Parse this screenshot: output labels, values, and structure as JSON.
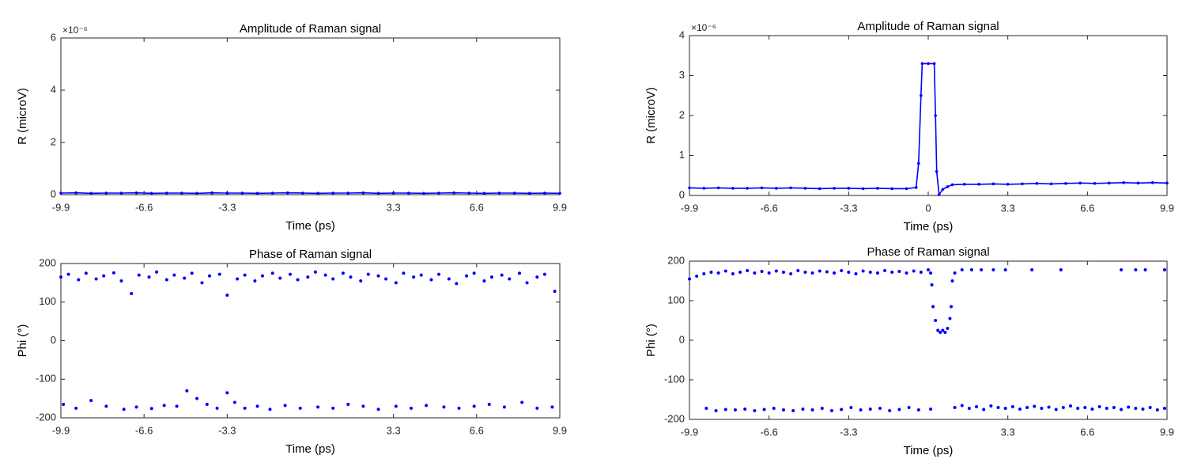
{
  "chart_data": [
    {
      "type": "line",
      "title": "Amplitude of Raman signal",
      "xlabel": "Time (ps)",
      "ylabel": "R (microV)",
      "y_multiplier_label": "×10⁻⁶",
      "color": "#0000ff",
      "xlim": [
        -9.9,
        9.9
      ],
      "xticks": [
        -9.9,
        -6.6,
        -3.3,
        3.3,
        6.6,
        9.9
      ],
      "ylim": [
        0,
        6
      ],
      "yticks": [
        0,
        2,
        4,
        6
      ],
      "x": [
        -9.9,
        -9.3,
        -8.7,
        -8.1,
        -7.5,
        -6.9,
        -6.3,
        -5.7,
        -5.1,
        -4.5,
        -3.9,
        -3.3,
        -2.7,
        -2.1,
        -1.5,
        -0.9,
        -0.3,
        0.3,
        0.9,
        1.5,
        2.1,
        2.7,
        3.3,
        3.9,
        4.5,
        5.1,
        5.7,
        6.3,
        6.9,
        7.5,
        8.1,
        8.7,
        9.3,
        9.9
      ],
      "values": [
        0.06,
        0.07,
        0.05,
        0.06,
        0.06,
        0.07,
        0.05,
        0.06,
        0.06,
        0.05,
        0.07,
        0.06,
        0.06,
        0.05,
        0.06,
        0.07,
        0.06,
        0.05,
        0.06,
        0.06,
        0.07,
        0.05,
        0.06,
        0.06,
        0.05,
        0.06,
        0.07,
        0.06,
        0.05,
        0.06,
        0.06,
        0.05,
        0.06,
        0.05
      ]
    },
    {
      "type": "line",
      "title": "Amplitude of Raman signal",
      "xlabel": "Time (ps)",
      "ylabel": "R (microV)",
      "y_multiplier_label": "×10⁻⁶",
      "color": "#0000ff",
      "xlim": [
        -9.9,
        9.9
      ],
      "xticks": [
        -9.9,
        -6.6,
        -3.3,
        0,
        3.3,
        6.6,
        9.9
      ],
      "ylim": [
        0,
        4
      ],
      "yticks": [
        0,
        1,
        2,
        3,
        4
      ],
      "x": [
        -9.9,
        -9.3,
        -8.7,
        -8.1,
        -7.5,
        -6.9,
        -6.3,
        -5.7,
        -5.1,
        -4.5,
        -3.9,
        -3.3,
        -2.7,
        -2.1,
        -1.5,
        -0.9,
        -0.5,
        -0.4,
        -0.3,
        -0.25,
        0,
        0.25,
        0.3,
        0.35,
        0.45,
        0.6,
        0.8,
        1.0,
        1.5,
        2.1,
        2.7,
        3.3,
        3.9,
        4.5,
        5.1,
        5.7,
        6.3,
        6.9,
        7.5,
        8.1,
        8.7,
        9.3,
        9.9
      ],
      "values": [
        0.19,
        0.18,
        0.19,
        0.18,
        0.18,
        0.19,
        0.18,
        0.19,
        0.18,
        0.17,
        0.18,
        0.18,
        0.17,
        0.18,
        0.17,
        0.17,
        0.2,
        0.8,
        2.5,
        3.3,
        3.3,
        3.3,
        2.0,
        0.6,
        0.02,
        0.15,
        0.22,
        0.27,
        0.28,
        0.28,
        0.29,
        0.28,
        0.29,
        0.3,
        0.29,
        0.3,
        0.31,
        0.3,
        0.31,
        0.32,
        0.31,
        0.32,
        0.31
      ]
    },
    {
      "type": "scatter",
      "title": "Phase of Raman signal",
      "xlabel": "Time (ps)",
      "ylabel": "Phi (°)",
      "color": "#0000ff",
      "xlim": [
        -9.9,
        9.9
      ],
      "xticks": [
        -9.9,
        -6.6,
        -3.3,
        3.3,
        6.6,
        9.9
      ],
      "ylim": [
        -200,
        200
      ],
      "yticks": [
        -200,
        -100,
        0,
        100,
        200
      ],
      "x": [
        -9.9,
        -9.6,
        -9.2,
        -8.9,
        -8.5,
        -8.2,
        -7.8,
        -7.5,
        -7.1,
        -6.8,
        -6.4,
        -6.1,
        -5.7,
        -5.4,
        -5.0,
        -4.7,
        -4.3,
        -4.0,
        -3.6,
        -3.3,
        -2.9,
        -2.6,
        -2.2,
        -1.9,
        -1.5,
        -1.2,
        -0.8,
        -0.5,
        -0.1,
        0.2,
        0.6,
        0.9,
        1.3,
        1.6,
        2.0,
        2.3,
        2.7,
        3.0,
        3.4,
        3.7,
        4.1,
        4.4,
        4.8,
        5.1,
        5.5,
        5.8,
        6.2,
        6.5,
        6.9,
        7.2,
        7.6,
        7.9,
        8.3,
        8.6,
        9.0,
        9.3,
        9.7,
        -9.8,
        -9.3,
        -8.7,
        -8.1,
        -7.4,
        -6.9,
        -6.3,
        -5.8,
        -5.3,
        -4.9,
        -4.5,
        -4.1,
        -3.7,
        -3.3,
        -3.0,
        -2.6,
        -2.1,
        -1.6,
        -1.0,
        -0.4,
        0.3,
        0.9,
        1.5,
        2.1,
        2.7,
        3.4,
        4.0,
        4.6,
        5.3,
        5.9,
        6.5,
        7.1,
        7.7,
        8.4,
        9.0,
        9.6
      ],
      "values": [
        165,
        172,
        158,
        175,
        160,
        168,
        176,
        155,
        122,
        170,
        165,
        178,
        158,
        170,
        162,
        175,
        150,
        168,
        172,
        118,
        160,
        170,
        155,
        168,
        175,
        162,
        172,
        158,
        165,
        178,
        170,
        160,
        175,
        165,
        155,
        172,
        168,
        160,
        150,
        175,
        165,
        170,
        158,
        172,
        160,
        148,
        168,
        175,
        155,
        165,
        170,
        160,
        175,
        150,
        165,
        172,
        128,
        -165,
        -175,
        -155,
        -170,
        -178,
        -172,
        -176,
        -168,
        -170,
        -130,
        -150,
        -165,
        -175,
        -135,
        -160,
        -175,
        -170,
        -178,
        -168,
        -175,
        -172,
        -175,
        -165,
        -170,
        -178,
        -170,
        -175,
        -168,
        -172,
        -175,
        -170,
        -165,
        -172,
        -160,
        -175,
        -172
      ]
    },
    {
      "type": "scatter",
      "title": "Phase of Raman signal",
      "xlabel": "Time (ps)",
      "ylabel": "Phi (°)",
      "color": "#0000ff",
      "xlim": [
        -9.9,
        9.9
      ],
      "xticks": [
        -9.9,
        -6.6,
        -3.3,
        3.3,
        6.6,
        9.9
      ],
      "ylim": [
        -200,
        200
      ],
      "yticks": [
        -200,
        -100,
        0,
        100,
        200
      ],
      "x": [
        -9.9,
        -9.6,
        -9.3,
        -9.0,
        -8.7,
        -8.4,
        -8.1,
        -7.8,
        -7.5,
        -7.2,
        -6.9,
        -6.6,
        -6.3,
        -6.0,
        -5.7,
        -5.4,
        -5.1,
        -4.8,
        -4.5,
        -4.2,
        -3.9,
        -3.6,
        -3.3,
        -3.0,
        -2.7,
        -2.4,
        -2.1,
        -1.8,
        -1.5,
        -1.2,
        -0.9,
        -0.6,
        -0.3,
        0,
        0.1,
        0.15,
        0.2,
        0.3,
        0.4,
        0.5,
        0.6,
        0.7,
        0.8,
        0.9,
        0.95,
        1.0,
        1.1,
        1.4,
        1.8,
        2.2,
        2.7,
        3.2,
        4.3,
        5.5,
        8.0,
        8.6,
        9.0,
        9.8,
        -9.2,
        -8.8,
        -8.4,
        -8.0,
        -7.6,
        -7.2,
        -6.8,
        -6.4,
        -6.0,
        -5.6,
        -5.2,
        -4.8,
        -4.4,
        -4.0,
        -3.6,
        -3.2,
        -2.8,
        -2.4,
        -2.0,
        -1.6,
        -1.2,
        -0.8,
        -0.4,
        0.1,
        1.1,
        1.4,
        1.7,
        2.0,
        2.3,
        2.6,
        2.9,
        3.2,
        3.5,
        3.8,
        4.1,
        4.4,
        4.7,
        5.0,
        5.3,
        5.6,
        5.9,
        6.2,
        6.5,
        6.8,
        7.1,
        7.4,
        7.7,
        8.0,
        8.3,
        8.6,
        8.9,
        9.2,
        9.5,
        9.8
      ],
      "values": [
        155,
        162,
        168,
        172,
        170,
        175,
        168,
        172,
        176,
        170,
        174,
        170,
        175,
        172,
        168,
        176,
        172,
        170,
        175,
        173,
        170,
        176,
        172,
        168,
        175,
        172,
        170,
        176,
        172,
        174,
        170,
        175,
        172,
        178,
        170,
        140,
        85,
        50,
        25,
        20,
        25,
        20,
        30,
        55,
        85,
        150,
        170,
        178,
        178,
        178,
        178,
        178,
        178,
        178,
        178,
        178,
        178,
        178,
        -172,
        -178,
        -175,
        -176,
        -174,
        -178,
        -175,
        -172,
        -176,
        -178,
        -174,
        -176,
        -172,
        -178,
        -175,
        -170,
        -176,
        -174,
        -172,
        -178,
        -175,
        -170,
        -176,
        -174,
        -170,
        -165,
        -172,
        -168,
        -175,
        -166,
        -170,
        -172,
        -168,
        -174,
        -170,
        -167,
        -172,
        -169,
        -175,
        -170,
        -166,
        -172,
        -170,
        -174,
        -168,
        -172,
        -170,
        -175,
        -169,
        -172,
        -174,
        -170,
        -176,
        -172
      ]
    }
  ]
}
